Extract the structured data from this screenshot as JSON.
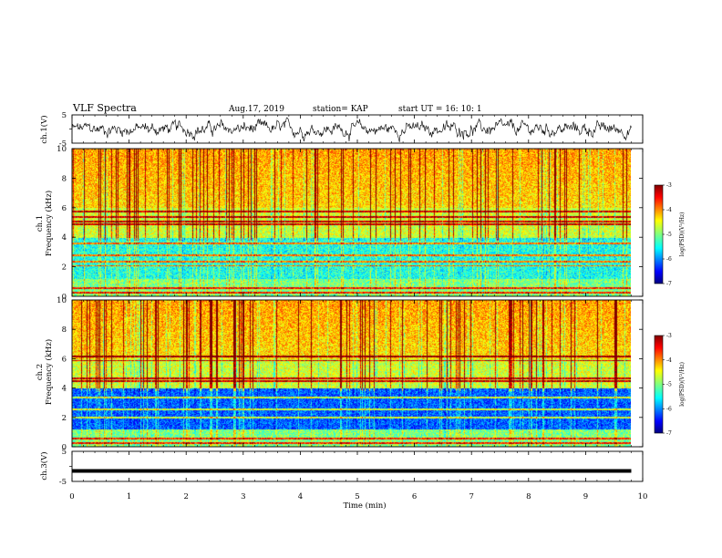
{
  "header": {
    "title": "VLF Spectra",
    "date": "Aug.17, 2019",
    "station": "station= KAP",
    "start": "start  UT  =   16: 10: 1"
  },
  "chart_data": [
    {
      "type": "line",
      "panel": "ch1_waveform",
      "ylabel": "ch.1(V)",
      "ylim": [
        -5,
        5
      ],
      "yticks": [
        "5",
        "-5"
      ],
      "x_range_min": [
        0,
        9.8
      ],
      "description_of_values": "noisy waveform oscillating roughly between -4.5 and 4.5 V"
    },
    {
      "type": "heatmap",
      "panel": "ch1_spectrogram",
      "ylabel": "ch.1\nFrequency (kHz)",
      "ylim": [
        0,
        10
      ],
      "yticks": [
        "0",
        "2",
        "4",
        "6",
        "8",
        "10"
      ],
      "colorbar": {
        "label": "log(PSD)(V²/Hz)",
        "range": [
          -7,
          -3
        ],
        "ticks": [
          "-3",
          "-4",
          "-5",
          "-6",
          "-7"
        ]
      },
      "bands_khz": [
        0.3,
        0.6,
        2.1,
        2.4,
        2.8,
        3.6,
        4.9,
        5.1,
        5.4,
        5.8
      ]
    },
    {
      "type": "heatmap",
      "panel": "ch2_spectrogram",
      "ylabel": "ch.2\nFrequency (kHz)",
      "ylim": [
        0,
        10
      ],
      "yticks": [
        "0",
        "2",
        "4",
        "6",
        "8",
        "10"
      ],
      "colorbar": {
        "label": "log(PSD)(V²/Hz)",
        "range": [
          -7,
          -3
        ],
        "ticks": [
          "-3",
          "-4",
          "-5",
          "-6",
          "-7"
        ]
      },
      "bands_khz": [
        0.3,
        0.6,
        2.0,
        2.6,
        3.4,
        4.5,
        4.7,
        5.9,
        6.2
      ]
    },
    {
      "type": "line",
      "panel": "ch3_waveform",
      "ylabel": "ch.3(V)",
      "ylim": [
        -5,
        5
      ],
      "yticks": [
        "5",
        "-5"
      ],
      "constant_value": -1.5
    }
  ],
  "xaxis": {
    "label": "Time (min)",
    "ticks": [
      "0",
      "1",
      "2",
      "3",
      "4",
      "5",
      "6",
      "7",
      "8",
      "9",
      "10"
    ],
    "xlim": [
      0,
      10
    ],
    "data_end": 9.8
  },
  "colors": {
    "jet": [
      "#00007f",
      "#0000ff",
      "#007fff",
      "#00ffff",
      "#7fff7f",
      "#ffff00",
      "#ff7f00",
      "#ff0000",
      "#7f0000"
    ]
  }
}
